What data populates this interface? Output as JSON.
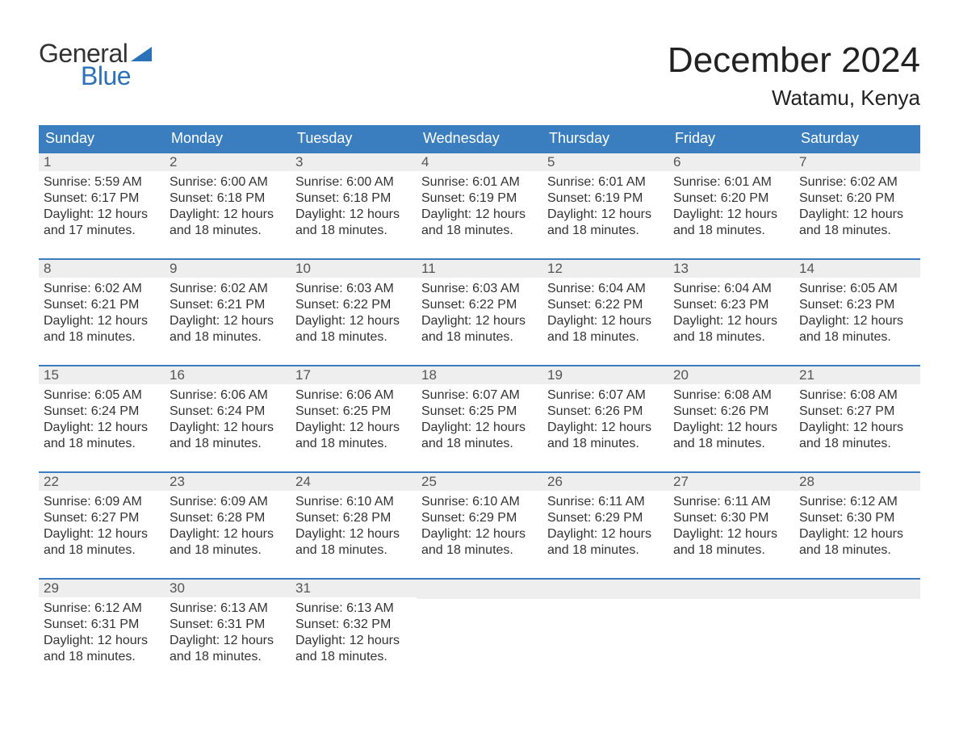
{
  "brand": {
    "line1": "General",
    "line2": "Blue",
    "flag_color": "#2b72b8",
    "text_color_top": "#333333",
    "text_color_bottom": "#2b72b8"
  },
  "title": "December 2024",
  "location": "Watamu, Kenya",
  "colors": {
    "header_bg": "#3a7ebf",
    "header_text": "#ffffff",
    "week_top_border": "#3a7ebf",
    "daynum_bg": "#eeeeee",
    "daynum_text": "#555555",
    "body_text": "#333333",
    "page_bg": "#ffffff"
  },
  "day_headers": [
    "Sunday",
    "Monday",
    "Tuesday",
    "Wednesday",
    "Thursday",
    "Friday",
    "Saturday"
  ],
  "labels": {
    "sunrise": "Sunrise",
    "sunset": "Sunset",
    "daylight": "Daylight"
  },
  "weeks": [
    [
      {
        "day": 1,
        "sunrise": "5:59 AM",
        "sunset": "6:17 PM",
        "daylight": "12 hours and 17 minutes."
      },
      {
        "day": 2,
        "sunrise": "6:00 AM",
        "sunset": "6:18 PM",
        "daylight": "12 hours and 18 minutes."
      },
      {
        "day": 3,
        "sunrise": "6:00 AM",
        "sunset": "6:18 PM",
        "daylight": "12 hours and 18 minutes."
      },
      {
        "day": 4,
        "sunrise": "6:01 AM",
        "sunset": "6:19 PM",
        "daylight": "12 hours and 18 minutes."
      },
      {
        "day": 5,
        "sunrise": "6:01 AM",
        "sunset": "6:19 PM",
        "daylight": "12 hours and 18 minutes."
      },
      {
        "day": 6,
        "sunrise": "6:01 AM",
        "sunset": "6:20 PM",
        "daylight": "12 hours and 18 minutes."
      },
      {
        "day": 7,
        "sunrise": "6:02 AM",
        "sunset": "6:20 PM",
        "daylight": "12 hours and 18 minutes."
      }
    ],
    [
      {
        "day": 8,
        "sunrise": "6:02 AM",
        "sunset": "6:21 PM",
        "daylight": "12 hours and 18 minutes."
      },
      {
        "day": 9,
        "sunrise": "6:02 AM",
        "sunset": "6:21 PM",
        "daylight": "12 hours and 18 minutes."
      },
      {
        "day": 10,
        "sunrise": "6:03 AM",
        "sunset": "6:22 PM",
        "daylight": "12 hours and 18 minutes."
      },
      {
        "day": 11,
        "sunrise": "6:03 AM",
        "sunset": "6:22 PM",
        "daylight": "12 hours and 18 minutes."
      },
      {
        "day": 12,
        "sunrise": "6:04 AM",
        "sunset": "6:22 PM",
        "daylight": "12 hours and 18 minutes."
      },
      {
        "day": 13,
        "sunrise": "6:04 AM",
        "sunset": "6:23 PM",
        "daylight": "12 hours and 18 minutes."
      },
      {
        "day": 14,
        "sunrise": "6:05 AM",
        "sunset": "6:23 PM",
        "daylight": "12 hours and 18 minutes."
      }
    ],
    [
      {
        "day": 15,
        "sunrise": "6:05 AM",
        "sunset": "6:24 PM",
        "daylight": "12 hours and 18 minutes."
      },
      {
        "day": 16,
        "sunrise": "6:06 AM",
        "sunset": "6:24 PM",
        "daylight": "12 hours and 18 minutes."
      },
      {
        "day": 17,
        "sunrise": "6:06 AM",
        "sunset": "6:25 PM",
        "daylight": "12 hours and 18 minutes."
      },
      {
        "day": 18,
        "sunrise": "6:07 AM",
        "sunset": "6:25 PM",
        "daylight": "12 hours and 18 minutes."
      },
      {
        "day": 19,
        "sunrise": "6:07 AM",
        "sunset": "6:26 PM",
        "daylight": "12 hours and 18 minutes."
      },
      {
        "day": 20,
        "sunrise": "6:08 AM",
        "sunset": "6:26 PM",
        "daylight": "12 hours and 18 minutes."
      },
      {
        "day": 21,
        "sunrise": "6:08 AM",
        "sunset": "6:27 PM",
        "daylight": "12 hours and 18 minutes."
      }
    ],
    [
      {
        "day": 22,
        "sunrise": "6:09 AM",
        "sunset": "6:27 PM",
        "daylight": "12 hours and 18 minutes."
      },
      {
        "day": 23,
        "sunrise": "6:09 AM",
        "sunset": "6:28 PM",
        "daylight": "12 hours and 18 minutes."
      },
      {
        "day": 24,
        "sunrise": "6:10 AM",
        "sunset": "6:28 PM",
        "daylight": "12 hours and 18 minutes."
      },
      {
        "day": 25,
        "sunrise": "6:10 AM",
        "sunset": "6:29 PM",
        "daylight": "12 hours and 18 minutes."
      },
      {
        "day": 26,
        "sunrise": "6:11 AM",
        "sunset": "6:29 PM",
        "daylight": "12 hours and 18 minutes."
      },
      {
        "day": 27,
        "sunrise": "6:11 AM",
        "sunset": "6:30 PM",
        "daylight": "12 hours and 18 minutes."
      },
      {
        "day": 28,
        "sunrise": "6:12 AM",
        "sunset": "6:30 PM",
        "daylight": "12 hours and 18 minutes."
      }
    ],
    [
      {
        "day": 29,
        "sunrise": "6:12 AM",
        "sunset": "6:31 PM",
        "daylight": "12 hours and 18 minutes."
      },
      {
        "day": 30,
        "sunrise": "6:13 AM",
        "sunset": "6:31 PM",
        "daylight": "12 hours and 18 minutes."
      },
      {
        "day": 31,
        "sunrise": "6:13 AM",
        "sunset": "6:32 PM",
        "daylight": "12 hours and 18 minutes."
      },
      null,
      null,
      null,
      null
    ]
  ]
}
